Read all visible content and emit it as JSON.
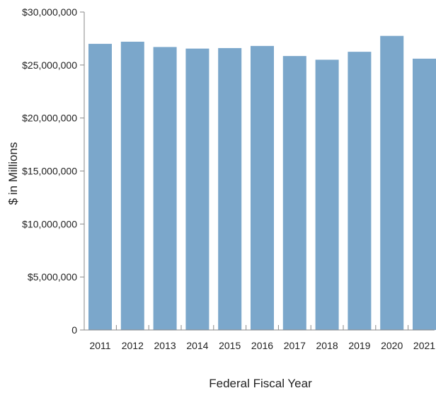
{
  "chart_data": {
    "type": "bar",
    "title": "",
    "xlabel": "Federal Fiscal Year",
    "ylabel": "$ in Millions",
    "categories": [
      "2011",
      "2012",
      "2013",
      "2014",
      "2015",
      "2016",
      "2017",
      "2018",
      "2019",
      "2020",
      "2021"
    ],
    "values": [
      27000000,
      27200000,
      26700000,
      26550000,
      26600000,
      26800000,
      25850000,
      25500000,
      26250000,
      27750000,
      25600000
    ],
    "ylim": [
      0,
      30000000
    ],
    "yticks": [
      0,
      5000000,
      10000000,
      15000000,
      20000000,
      25000000,
      30000000
    ],
    "ytick_labels": [
      "0",
      "$5,000,000",
      "$10,000,000",
      "$15,000,000",
      "$20,000,000",
      "$25,000,000",
      "$30,000,000"
    ],
    "bar_color": "#7BA7CB",
    "axis_color": "#888888",
    "grid": false,
    "legend": "none"
  }
}
